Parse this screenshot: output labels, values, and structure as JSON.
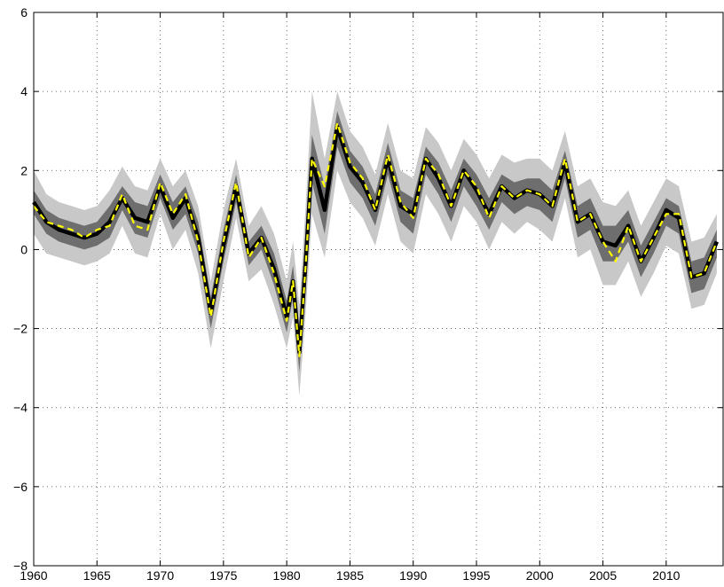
{
  "chart_data": {
    "type": "line",
    "title": "",
    "xlabel": "",
    "ylabel": "",
    "xlim": [
      1960,
      2014.5
    ],
    "ylim": [
      -8,
      6
    ],
    "grid": true,
    "x_ticks": [
      1960,
      1965,
      1970,
      1975,
      1980,
      1985,
      1990,
      1995,
      2000,
      2005,
      2010
    ],
    "x_tick_labels": [
      "1960",
      "1965",
      "1970",
      "1975",
      "1980",
      "1985",
      "1990",
      "1995",
      "2000",
      "2005",
      "2010"
    ],
    "y_ticks": [
      -8,
      -6,
      -4,
      -2,
      0,
      2,
      4,
      6
    ],
    "y_tick_labels": [
      "−8",
      "−6",
      "−4",
      "−2",
      "0",
      "2",
      "4",
      "6"
    ],
    "colors": {
      "outer_band": "#c8c8c8",
      "inner_band": "#6e6e6e",
      "median_line": "#000000",
      "point_estimate": "#ffff00"
    },
    "x": [
      1960,
      1961,
      1962,
      1963,
      1964,
      1965,
      1966,
      1967,
      1968,
      1969,
      1970,
      1971,
      1972,
      1973,
      1974,
      1975,
      1976,
      1977,
      1978,
      1979,
      1980,
      1980.5,
      1981,
      1981.5,
      1982,
      1983,
      1984,
      1985,
      1986,
      1987,
      1988,
      1989,
      1990,
      1991,
      1992,
      1993,
      1994,
      1995,
      1996,
      1997,
      1998,
      1999,
      2000,
      2001,
      2002,
      2003,
      2004,
      2005,
      2006,
      2007,
      2008,
      2009,
      2010,
      2011,
      2012,
      2013,
      2014
    ],
    "series": [
      {
        "role": "median",
        "values": [
          1.2,
          0.7,
          0.5,
          0.4,
          0.3,
          0.4,
          0.7,
          1.3,
          0.8,
          0.7,
          1.6,
          0.8,
          1.3,
          0.3,
          -1.6,
          0.1,
          1.6,
          -0.1,
          0.3,
          -0.5,
          -1.7,
          -0.8,
          -2.6,
          -0.3,
          2.3,
          1.0,
          3.1,
          2.1,
          1.7,
          1.0,
          2.3,
          1.1,
          0.9,
          2.3,
          1.8,
          1.1,
          2.0,
          1.5,
          0.9,
          1.6,
          1.3,
          1.5,
          1.4,
          1.1,
          2.2,
          0.7,
          0.9,
          0.2,
          0.1,
          0.6,
          -0.3,
          0.3,
          1.0,
          0.8,
          -0.7,
          -0.6,
          0.2
        ]
      },
      {
        "role": "point-estimate",
        "values": [
          1.1,
          0.7,
          0.6,
          0.5,
          0.3,
          0.5,
          0.6,
          1.4,
          0.6,
          0.5,
          1.7,
          0.9,
          1.4,
          0.2,
          -1.7,
          0.2,
          1.7,
          -0.2,
          0.3,
          -0.6,
          -1.8,
          -0.8,
          -2.7,
          -0.4,
          2.3,
          1.6,
          3.2,
          2.2,
          1.8,
          1.0,
          2.4,
          1.2,
          0.8,
          2.3,
          1.9,
          1.1,
          2.0,
          1.6,
          0.8,
          1.6,
          1.3,
          1.5,
          1.4,
          1.1,
          2.3,
          0.7,
          0.9,
          0.2,
          -0.3,
          0.6,
          -0.3,
          0.3,
          0.9,
          0.9,
          -0.7,
          -0.6,
          0.2
        ]
      },
      {
        "role": "inner-band",
        "lower": [
          0.9,
          0.4,
          0.2,
          0.1,
          0.0,
          0.1,
          0.3,
          1.0,
          0.4,
          0.3,
          1.3,
          0.5,
          0.9,
          -0.1,
          -2.0,
          -0.3,
          1.2,
          -0.4,
          0.0,
          -0.9,
          -2.1,
          -1.2,
          -3.1,
          -0.9,
          1.7,
          0.4,
          2.6,
          1.7,
          1.3,
          0.6,
          1.9,
          0.7,
          0.4,
          1.9,
          1.4,
          0.7,
          1.6,
          1.1,
          0.5,
          1.2,
          0.9,
          1.1,
          1.0,
          0.7,
          1.8,
          0.3,
          0.5,
          -0.3,
          -0.3,
          0.2,
          -0.7,
          -0.1,
          0.6,
          0.4,
          -1.1,
          -1.0,
          -0.2
        ],
        "upper": [
          1.5,
          1.0,
          0.8,
          0.7,
          0.6,
          0.7,
          1.1,
          1.6,
          1.2,
          1.1,
          1.9,
          1.2,
          1.6,
          0.7,
          -1.2,
          0.5,
          1.9,
          0.2,
          0.6,
          -0.1,
          -1.3,
          -0.4,
          -2.1,
          0.3,
          2.9,
          1.6,
          3.5,
          2.5,
          2.1,
          1.4,
          2.7,
          1.5,
          1.3,
          2.6,
          2.2,
          1.5,
          2.3,
          1.9,
          1.3,
          1.9,
          1.7,
          1.8,
          1.8,
          1.5,
          2.5,
          1.1,
          1.3,
          0.6,
          0.6,
          1.0,
          0.1,
          0.7,
          1.3,
          1.1,
          -0.3,
          -0.2,
          0.5
        ]
      },
      {
        "role": "outer-band",
        "lower": [
          0.4,
          -0.1,
          -0.2,
          -0.3,
          -0.4,
          -0.3,
          -0.1,
          0.6,
          -0.1,
          -0.2,
          0.9,
          0.0,
          0.5,
          -0.6,
          -2.5,
          -0.8,
          0.8,
          -0.8,
          -0.5,
          -1.4,
          -2.5,
          -1.7,
          -3.7,
          -1.6,
          0.9,
          -0.2,
          2.0,
          1.2,
          0.8,
          0.1,
          1.4,
          0.2,
          -0.1,
          1.4,
          0.9,
          0.2,
          1.1,
          0.7,
          0.0,
          0.7,
          0.4,
          0.7,
          0.5,
          0.2,
          1.3,
          -0.2,
          0.0,
          -0.9,
          -0.9,
          -0.3,
          -1.2,
          -0.6,
          0.1,
          -0.1,
          -1.5,
          -1.4,
          -0.6
        ],
        "upper": [
          2.0,
          1.4,
          1.2,
          1.1,
          1.0,
          1.1,
          1.5,
          2.1,
          1.6,
          1.5,
          2.3,
          1.6,
          2.0,
          1.1,
          -0.8,
          1.0,
          2.3,
          0.6,
          1.1,
          0.4,
          -0.8,
          0.2,
          -1.4,
          1.1,
          4.0,
          2.3,
          4.0,
          3.0,
          2.6,
          1.9,
          3.2,
          2.0,
          1.8,
          3.1,
          2.7,
          2.0,
          2.8,
          2.4,
          1.8,
          2.4,
          2.2,
          2.3,
          2.3,
          2.0,
          3.0,
          1.6,
          1.8,
          1.2,
          1.1,
          1.5,
          0.6,
          1.2,
          1.8,
          1.6,
          0.2,
          0.3,
          0.9
        ]
      }
    ]
  }
}
